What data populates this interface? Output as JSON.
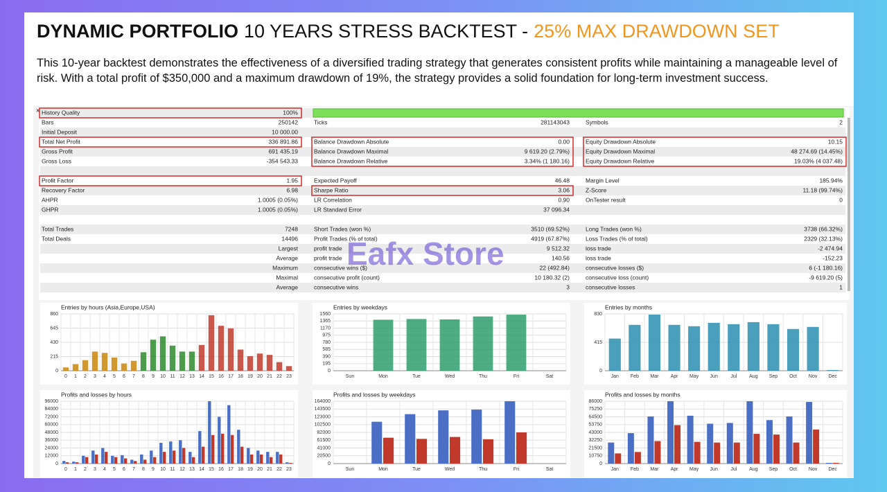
{
  "header": {
    "title_bold": "DYNAMIC PORTFOLIO",
    "title_normal": "10 YEARS STRESS BACKTEST -",
    "title_accent": "25% MAX DRAWDOWN SET",
    "description": "This 10-year backtest demonstrates the effectiveness of a diversified trading strategy that generates consistent profits while maintaining a manageable level of risk. With a total profit of $350,000 and a maximum drawdown of 19%, the strategy provides a solid foundation for long-term investment success."
  },
  "watermark": "Eafx Store",
  "report": {
    "quality_bar_color": "#7ce05a",
    "rows": [
      [
        "History Quality",
        "100%",
        null,
        null,
        null,
        null
      ],
      [
        "Bars",
        "250142",
        "Ticks",
        "281143043",
        "Symbols",
        "2"
      ],
      [
        "Initial Deposit",
        "10 000.00",
        null,
        null,
        null,
        null
      ],
      [
        "Total Net Profit",
        "336 891.86",
        "Balance Drawdown Absolute",
        "0.00",
        "Equity Drawdown Absolute",
        "10.15"
      ],
      [
        "Gross Profit",
        "691 435.19",
        "Balance Drawdown Maximal",
        "9 619.20 (2.79%)",
        "Equity Drawdown Maximal",
        "48 274.69 (14.45%)"
      ],
      [
        "Gross Loss",
        "-354 543.33",
        "Balance Drawdown Relative",
        "3.34% (1 180.16)",
        "Equity Drawdown Relative",
        "19.03% (4 037.48)"
      ],
      [],
      [
        "Profit Factor",
        "1.95",
        "Expected Payoff",
        "46.48",
        "Margin Level",
        "185.94%"
      ],
      [
        "Recovery Factor",
        "6.98",
        "Sharpe Ratio",
        "3.06",
        "Z-Score",
        "11.18 (99.74%)"
      ],
      [
        "AHPR",
        "1.0005 (0.05%)",
        "LR Correlation",
        "0.90",
        "OnTester result",
        "0"
      ],
      [
        "GHPR",
        "1.0005 (0.05%)",
        "LR Standard Error",
        "37 096.34",
        null,
        null
      ],
      [],
      [
        "Total Trades",
        "7248",
        "Short Trades (won %)",
        "3510 (69.52%)",
        "Long Trades (won %)",
        "3738 (66.32%)"
      ],
      [
        "Total Deals",
        "14496",
        "Profit Trades (% of total)",
        "4919 (67.87%)",
        "Loss Trades (% of total)",
        "2329 (32.13%)"
      ],
      [
        null,
        "Largest",
        "profit trade",
        "9 512.32",
        "loss trade",
        "-2 474.94"
      ],
      [
        null,
        "Average",
        "profit trade",
        "140.56",
        "loss trade",
        "-152.23"
      ],
      [
        null,
        "Maximum",
        "consecutive wins ($)",
        "22 (492.84)",
        "consecutive losses ($)",
        "6 (-1 180.16)"
      ],
      [
        null,
        "Maximal",
        "consecutive profit (count)",
        "10 180.32 (2)",
        "consecutive loss (count)",
        "-9 619.20 (5)"
      ],
      [
        null,
        "Average",
        "consecutive wins",
        "3",
        "consecutive losses",
        "1"
      ]
    ]
  },
  "chart_data": [
    {
      "type": "bar",
      "title": "Entries by hours (Asia,Europe,USA)",
      "categories": [
        "0",
        "1",
        "2",
        "3",
        "4",
        "5",
        "6",
        "7",
        "8",
        "9",
        "10",
        "11",
        "12",
        "13",
        "14",
        "15",
        "16",
        "17",
        "18",
        "19",
        "20",
        "21",
        "22",
        "23"
      ],
      "values": [
        50,
        100,
        160,
        290,
        270,
        200,
        110,
        150,
        280,
        470,
        520,
        380,
        290,
        290,
        390,
        840,
        680,
        640,
        320,
        220,
        260,
        240,
        130,
        70
      ],
      "colors": [
        "#c8860a",
        "#c8860a",
        "#c8860a",
        "#c8860a",
        "#c8860a",
        "#c8860a",
        "#c8860a",
        "#c8860a",
        "#2e8b2e",
        "#2e8b2e",
        "#2e8b2e",
        "#2e8b2e",
        "#2e8b2e",
        "#2e8b2e",
        "#c0392b",
        "#c0392b",
        "#c0392b",
        "#c0392b",
        "#c0392b",
        "#c0392b",
        "#c0392b",
        "#c0392b",
        "#c0392b",
        "#c0392b"
      ],
      "ylim": [
        0,
        860
      ],
      "yticks": [
        0,
        215,
        430,
        645,
        860
      ],
      "grid": true
    },
    {
      "type": "bar",
      "title": "Entries by weekdays",
      "categories": [
        "Sun",
        "Mon",
        "Tue",
        "Wed",
        "Thu",
        "Fri",
        "Sat"
      ],
      "values": [
        0,
        1400,
        1420,
        1410,
        1490,
        1540,
        0
      ],
      "color": "#2e9e6b",
      "ylim": [
        0,
        1560
      ],
      "yticks": [
        0,
        195,
        390,
        585,
        780,
        975,
        1170,
        1365,
        1560
      ],
      "grid": true
    },
    {
      "type": "bar",
      "title": "Entries by months",
      "categories": [
        "Jan",
        "Feb",
        "Mar",
        "Apr",
        "May",
        "Jun",
        "Jul",
        "Aug",
        "Sep",
        "Oct",
        "Nov",
        "Dec"
      ],
      "values": [
        470,
        670,
        820,
        670,
        650,
        700,
        680,
        710,
        680,
        610,
        640,
        10
      ],
      "color": "#2a8fb0",
      "ylim": [
        0,
        830
      ],
      "yticks": [
        0,
        415,
        830
      ],
      "grid": true
    },
    {
      "type": "bar",
      "title": "Profits and losses by hours",
      "categories": [
        "0",
        "1",
        "2",
        "3",
        "4",
        "5",
        "6",
        "7",
        "8",
        "9",
        "10",
        "11",
        "12",
        "13",
        "14",
        "15",
        "16",
        "17",
        "18",
        "19",
        "20",
        "21",
        "22",
        "23"
      ],
      "series": [
        {
          "color": "#4a6fc4",
          "values": [
            4000,
            3000,
            12000,
            20000,
            24000,
            12000,
            13000,
            6000,
            14000,
            20000,
            32000,
            34000,
            36000,
            18000,
            50000,
            96000,
            72000,
            90000,
            52000,
            24000,
            20000,
            18000,
            18000,
            2000
          ]
        },
        {
          "color": "#c0392b",
          "values": [
            2000,
            2000,
            10000,
            14000,
            18000,
            10000,
            8000,
            4000,
            6000,
            10000,
            18000,
            20000,
            24000,
            10000,
            26000,
            44000,
            46000,
            44000,
            26000,
            14000,
            14000,
            10000,
            14000,
            1000
          ]
        }
      ],
      "ylim": [
        0,
        96000
      ],
      "yticks": [
        0,
        12000,
        24000,
        36000,
        48000,
        60000,
        72000,
        84000,
        96000
      ],
      "grid": true
    },
    {
      "type": "bar",
      "title": "Profits and losses by weekdays",
      "categories": [
        "Sun",
        "Mon",
        "Tue",
        "Wed",
        "Thu",
        "Fri",
        "Sat"
      ],
      "series": [
        {
          "color": "#4a6fc4",
          "values": [
            0,
            110000,
            130000,
            140000,
            142000,
            164000,
            0
          ]
        },
        {
          "color": "#c0392b",
          "values": [
            0,
            68000,
            65000,
            70000,
            64000,
            82000,
            0
          ]
        }
      ],
      "ylim": [
        0,
        164000
      ],
      "yticks": [
        0,
        20500,
        41000,
        61500,
        82000,
        102500,
        123000,
        143500,
        164000
      ],
      "grid": true
    },
    {
      "type": "bar",
      "title": "Profits and losses by months",
      "categories": [
        "Jan",
        "Feb",
        "Mar",
        "Apr",
        "May",
        "Jun",
        "Jul",
        "Aug",
        "Sep",
        "Oct",
        "Nov",
        "Dec"
      ],
      "series": [
        {
          "color": "#4a6fc4",
          "values": [
            29000,
            42000,
            65000,
            86000,
            66000,
            55000,
            56000,
            86000,
            60000,
            65000,
            85000,
            1000
          ]
        },
        {
          "color": "#c0392b",
          "values": [
            14000,
            16000,
            31000,
            53000,
            30000,
            29000,
            29000,
            41000,
            40000,
            29000,
            47000,
            1000
          ]
        }
      ],
      "ylim": [
        0,
        86000
      ],
      "yticks": [
        0,
        10750,
        21500,
        32250,
        43000,
        53750,
        64500,
        75250,
        86000
      ],
      "grid": true
    }
  ]
}
